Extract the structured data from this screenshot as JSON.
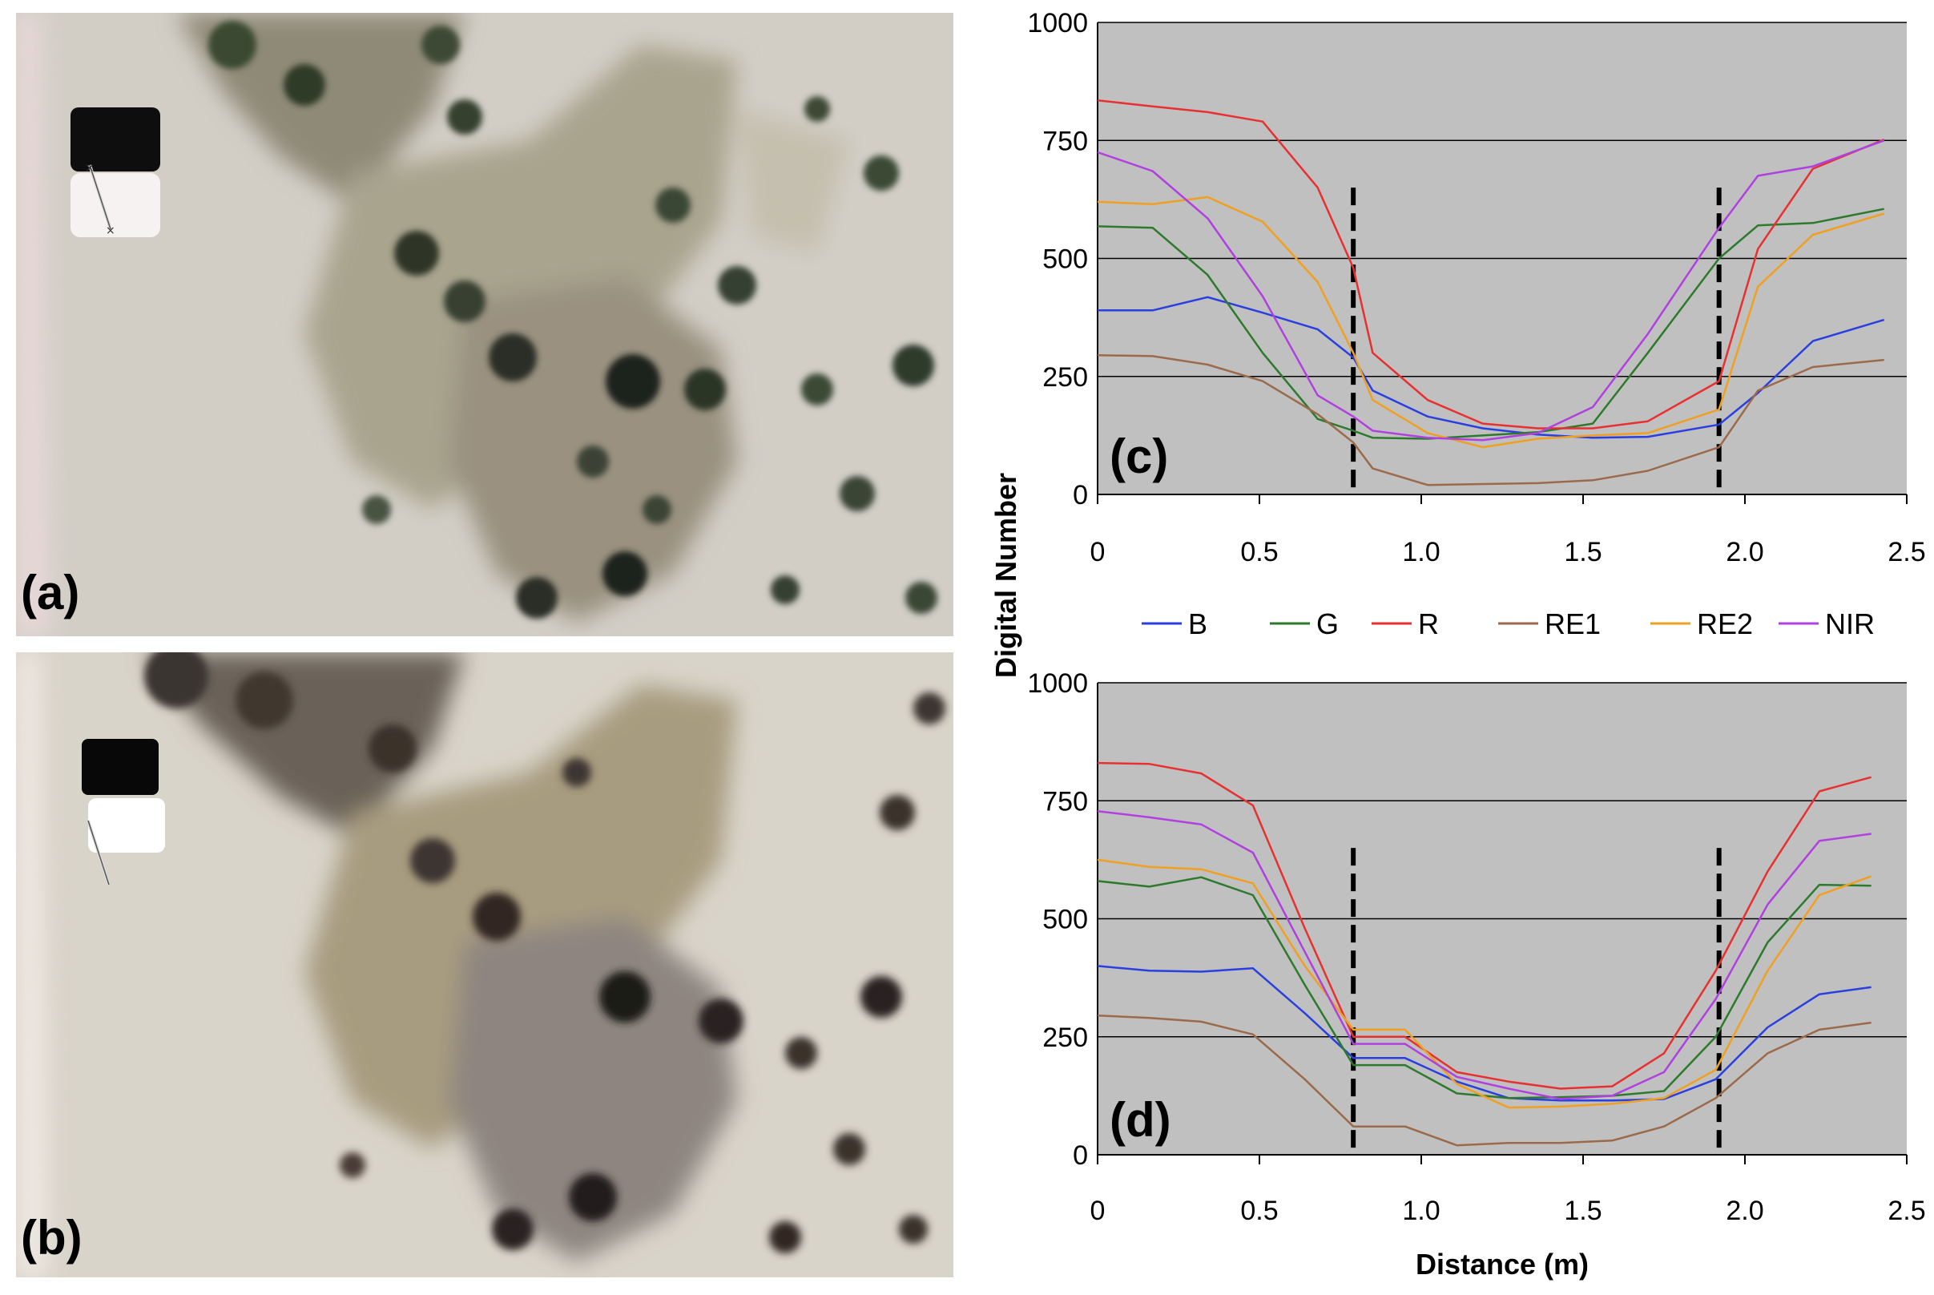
{
  "panels": {
    "a": "(a)",
    "b": "(b)",
    "c": "(c)",
    "d": "(d)"
  },
  "chart_data": [
    {
      "type": "line",
      "panel": "(c)",
      "ylabel": "Digital Number",
      "xlabel": "",
      "xlim": [
        0,
        2.5
      ],
      "ylim": [
        0,
        1000
      ],
      "xticks": [
        "0",
        "0.5",
        "1.0",
        "1.5",
        "2.0",
        "2.5"
      ],
      "yticks": [
        "0",
        "250",
        "500",
        "750",
        "1000"
      ],
      "grid": "horizontal",
      "background": "#c0c0c0",
      "reference_lines_x": [
        0.79,
        1.92
      ],
      "x": [
        0,
        0.17,
        0.34,
        0.51,
        0.68,
        0.79,
        0.85,
        1.02,
        1.19,
        1.36,
        1.53,
        1.7,
        1.92,
        2.04,
        2.21,
        2.43
      ],
      "series": [
        {
          "name": "B",
          "color": "#2a3fe0",
          "values": [
            390,
            390,
            418,
            385,
            350,
            290,
            220,
            165,
            140,
            127,
            120,
            122,
            148,
            215,
            325,
            370
          ]
        },
        {
          "name": "G",
          "color": "#2d7a2d",
          "values": [
            568,
            565,
            465,
            300,
            160,
            135,
            120,
            118,
            125,
            132,
            150,
            300,
            500,
            570,
            575,
            605
          ]
        },
        {
          "name": "R",
          "color": "#e83030",
          "values": [
            835,
            822,
            810,
            790,
            650,
            480,
            300,
            200,
            150,
            140,
            140,
            155,
            240,
            520,
            690,
            752
          ]
        },
        {
          "name": "RE1",
          "color": "#9b6a4a",
          "values": [
            295,
            293,
            275,
            240,
            170,
            110,
            55,
            20,
            22,
            24,
            30,
            50,
            100,
            220,
            270,
            285
          ]
        },
        {
          "name": "RE2",
          "color": "#f0a020",
          "values": [
            620,
            615,
            630,
            578,
            450,
            300,
            200,
            130,
            100,
            118,
            125,
            130,
            180,
            440,
            550,
            595
          ]
        },
        {
          "name": "NIR",
          "color": "#b040e0",
          "values": [
            725,
            685,
            585,
            420,
            210,
            165,
            135,
            120,
            115,
            130,
            185,
            340,
            565,
            675,
            695,
            750
          ]
        }
      ]
    },
    {
      "type": "line",
      "panel": "(d)",
      "ylabel": "",
      "xlabel": "Distance (m)",
      "xlim": [
        0,
        2.5
      ],
      "ylim": [
        0,
        1000
      ],
      "xticks": [
        "0",
        "0.5",
        "1.0",
        "1.5",
        "2.0",
        "2.5"
      ],
      "yticks": [
        "0",
        "250",
        "500",
        "750",
        "1000"
      ],
      "grid": "horizontal",
      "background": "#c0c0c0",
      "reference_lines_x": [
        0.79,
        1.92
      ],
      "x": [
        0,
        0.16,
        0.32,
        0.48,
        0.64,
        0.79,
        0.95,
        1.11,
        1.27,
        1.43,
        1.59,
        1.75,
        1.91,
        2.07,
        2.23,
        2.39
      ],
      "series": [
        {
          "name": "B",
          "color": "#2a3fe0",
          "values": [
            400,
            390,
            388,
            395,
            300,
            205,
            205,
            155,
            120,
            115,
            115,
            118,
            160,
            270,
            340,
            355
          ]
        },
        {
          "name": "G",
          "color": "#2d7a2d",
          "values": [
            580,
            568,
            588,
            550,
            360,
            190,
            190,
            130,
            120,
            122,
            125,
            135,
            250,
            450,
            572,
            570
          ]
        },
        {
          "name": "R",
          "color": "#e83030",
          "values": [
            830,
            828,
            808,
            740,
            480,
            250,
            250,
            175,
            155,
            140,
            145,
            215,
            390,
            600,
            770,
            800
          ]
        },
        {
          "name": "RE1",
          "color": "#9b6a4a",
          "values": [
            295,
            290,
            282,
            255,
            160,
            60,
            60,
            20,
            25,
            25,
            30,
            60,
            120,
            215,
            265,
            280
          ]
        },
        {
          "name": "RE2",
          "color": "#f0a020",
          "values": [
            625,
            610,
            605,
            575,
            400,
            265,
            265,
            150,
            100,
            102,
            108,
            120,
            180,
            390,
            550,
            590
          ]
        },
        {
          "name": "NIR",
          "color": "#b040e0",
          "values": [
            728,
            715,
            700,
            640,
            430,
            235,
            235,
            165,
            140,
            118,
            125,
            175,
            330,
            530,
            665,
            680
          ]
        }
      ]
    }
  ]
}
